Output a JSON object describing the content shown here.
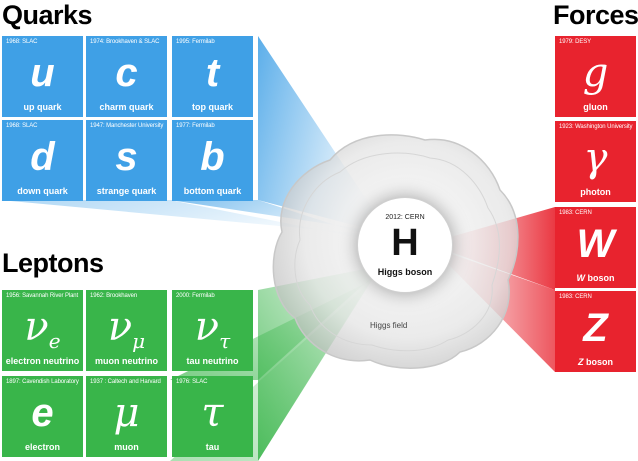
{
  "headings": {
    "quarks": "Quarks",
    "leptons": "Leptons",
    "forces": "Forces"
  },
  "quarks": [
    {
      "discovery": "1968: SLAC",
      "symbol": "u",
      "name": "up quark"
    },
    {
      "discovery": "1974: Brookhaven & SLAC",
      "symbol": "c",
      "name": "charm quark"
    },
    {
      "discovery": "1995: Fermilab",
      "symbol": "t",
      "name": "top quark"
    },
    {
      "discovery": "1968: SLAC",
      "symbol": "d",
      "name": "down quark"
    },
    {
      "discovery": "1947: Manchester University",
      "symbol": "s",
      "name": "strange quark"
    },
    {
      "discovery": "1977: Fermilab",
      "symbol": "b",
      "name": "bottom quark"
    }
  ],
  "leptons": [
    {
      "discovery": "1956: Savannah River Plant",
      "symbol": "ν",
      "sub": "e",
      "name": "electron neutrino"
    },
    {
      "discovery": "1962: Brookhaven",
      "symbol": "ν",
      "sub": "μ",
      "name": "muon neutrino"
    },
    {
      "discovery": "2000: Fermilab",
      "symbol": "ν",
      "sub": "τ",
      "name": "tau neutrino"
    },
    {
      "discovery": "1897: Cavendish Laboratory",
      "symbol": "e",
      "name": "electron"
    },
    {
      "discovery": "1937 : Caltech and Harvard",
      "symbol": "μ",
      "name": "muon"
    },
    {
      "discovery": "1976: SLAC",
      "symbol": "τ",
      "name": "tau"
    }
  ],
  "forces": [
    {
      "discovery": "1979: DESY",
      "symbol": "g",
      "name": "gluon"
    },
    {
      "discovery": "1923: Washington University",
      "symbol": "γ",
      "name": "photon"
    },
    {
      "discovery": "1983: CERN",
      "symbol": "W",
      "name_italic": "W",
      "name_rest": " boson"
    },
    {
      "discovery": "1983: CERN",
      "symbol": "Z",
      "name_italic": "Z",
      "name_rest": " boson"
    }
  ],
  "higgs": {
    "discovery": "2012: CERN",
    "symbol": "H",
    "name": "Higgs boson",
    "field_label": "Higgs field"
  },
  "colors": {
    "quark": "#3fa0e6",
    "lepton": "#39b54a",
    "force": "#e8232e"
  }
}
